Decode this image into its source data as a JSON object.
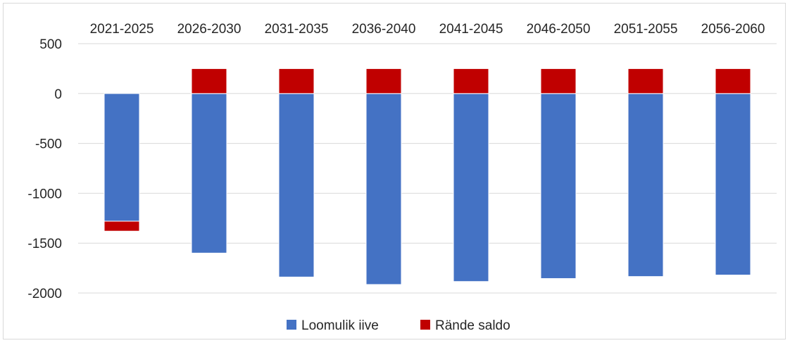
{
  "chart_data": {
    "type": "bar",
    "stacked": true,
    "categories": [
      "2021-2025",
      "2026-2030",
      "2031-2035",
      "2036-2040",
      "2041-2045",
      "2046-2050",
      "2051-2055",
      "2056-2060"
    ],
    "series": [
      {
        "name": "Loomulik iive",
        "color": "#4472c4",
        "values": [
          -1280,
          -1600,
          -1840,
          -1915,
          -1885,
          -1855,
          -1835,
          -1820
        ]
      },
      {
        "name": "Rände saldo",
        "color": "#c00000",
        "values": [
          -100,
          250,
          250,
          250,
          250,
          250,
          250,
          250
        ]
      }
    ],
    "yticks": [
      500,
      0,
      -500,
      -1000,
      -1500,
      -2000
    ],
    "ylim": [
      -2000,
      500
    ],
    "category_axis_position": "top",
    "grid": true,
    "legend_position": "bottom"
  }
}
